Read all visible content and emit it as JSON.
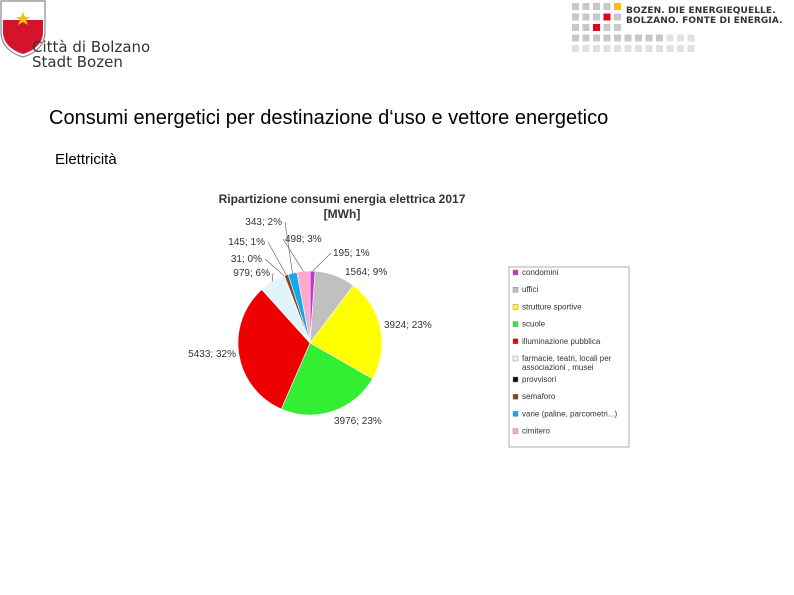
{
  "header": {
    "city_line1": "Città di Bolzano",
    "city_line2": "Stadt Bozen",
    "energy_line1": "BOZEN. DIE ENERGIEQUELLE.",
    "energy_line2": "BOLZANO. FONTE DI ENERGIA."
  },
  "slide": {
    "title": "Consumi energetici per destinazione d‘uso e vettore energetico",
    "subtitle": "Elettricità"
  },
  "colors": {
    "crest_red": "#d4142c",
    "crest_star": "#f2c200",
    "energy_red": "#e2001a",
    "energy_yellow": "#f5c400",
    "energy_grey": "#c8c8c8"
  },
  "chart_data": {
    "type": "pie",
    "title_line1": "Ripartizione consumi energia elettrica 2017",
    "title_line2": "[MWh]",
    "legend_position": "right",
    "slices": [
      {
        "name": "condomini",
        "value": 195,
        "label": "195; 1%",
        "color": "#cc33cc"
      },
      {
        "name": "uffici",
        "value": 1564,
        "label": "1564; 9%",
        "color": "#c0c0c0"
      },
      {
        "name": "strutture sportive",
        "value": 3924,
        "label": "3924; 23%",
        "color": "#ffff00"
      },
      {
        "name": "scuole",
        "value": 3976,
        "label": "3976; 23%",
        "color": "#33ee33"
      },
      {
        "name": "illuminazione pubblica",
        "value": 5433,
        "label": "5433; 32%",
        "color": "#ee0000"
      },
      {
        "name": "farmacie, teatri, locali per associazioni, musei",
        "value": 979,
        "label": "979; 6%",
        "color": "#dff4fb"
      },
      {
        "name": "provvisori",
        "value": 31,
        "label": "31; 0%",
        "color": "#111111"
      },
      {
        "name": "semaforo",
        "value": 145,
        "label": "145; 1%",
        "color": "#884422"
      },
      {
        "name": "varie (paline, parcometri...)",
        "value": 343,
        "label": "343; 2%",
        "color": "#11aaee"
      },
      {
        "name": "cimitero",
        "value": 498,
        "label": "498; 3%",
        "color": "#ffaacc"
      }
    ],
    "legend_lines": [
      [
        "condomini"
      ],
      [
        "uffici"
      ],
      [
        "strutture sportive"
      ],
      [
        "scuole"
      ],
      [
        "illuminazione pubblica"
      ],
      [
        "farmacie, teatri, locali per",
        "associazioni , musei"
      ],
      [
        "provvisori"
      ],
      [
        "semaforo"
      ],
      [
        "varie (paline, parcometri...)"
      ],
      [
        "cimitero"
      ]
    ]
  }
}
